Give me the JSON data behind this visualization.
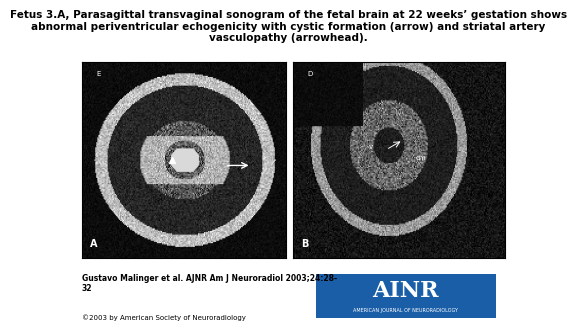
{
  "title": "Fetus 3.A, Parasagittal transvaginal sonogram of the fetal brain at 22 weeks’ gestation shows\nabnormal periventricular echogenicity with cystic formation (arrow) and striatal artery\nvasculopathy (arrowhead).",
  "title_fontsize": 7.5,
  "title_fontweight": "bold",
  "bg_color": "#ffffff",
  "citation_text": "Gustavo Malinger et al. AJNR Am J Neuroradiol 2003;24:28-\n32",
  "copyright_text": "©2003 by American Society of Neuroradiology",
  "citation_fontsize": 5.5,
  "copyright_fontsize": 5.0,
  "ainr_bg_color": "#1a5ea8",
  "ainr_text": "AINR",
  "ainr_sub_text": "AMERICAN JOURNAL OF NEURORADIOLOGY",
  "left_image_label": "A",
  "right_image_label": "B"
}
